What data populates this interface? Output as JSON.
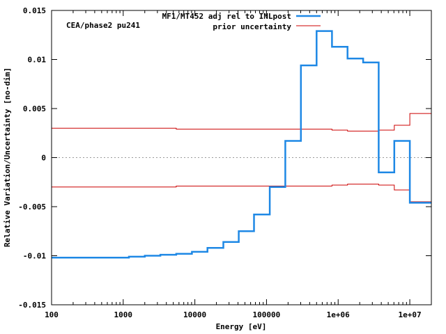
{
  "chart_data": {
    "type": "line",
    "title": "",
    "annotation": "CEA/phase2 pu241",
    "xlabel": "Energy [eV]",
    "ylabel": "Relative Variation/Uncertainty [no-dim]",
    "xscale": "log",
    "xlim": [
      100,
      20000000
    ],
    "ylim": [
      -0.015,
      0.015
    ],
    "grid": false,
    "legend_position": "top-right",
    "x_ticks": [
      {
        "value": 100,
        "label": "100"
      },
      {
        "value": 1000,
        "label": "1000"
      },
      {
        "value": 10000,
        "label": "10000"
      },
      {
        "value": 100000,
        "label": "100000"
      },
      {
        "value": 1000000,
        "label": "1e+06"
      },
      {
        "value": 10000000,
        "label": "1e+07"
      }
    ],
    "y_ticks": [
      {
        "value": -0.015,
        "label": "-0.015"
      },
      {
        "value": -0.01,
        "label": "-0.01"
      },
      {
        "value": -0.005,
        "label": "-0.005"
      },
      {
        "value": 0,
        "label": "0"
      },
      {
        "value": 0.005,
        "label": "0.005"
      },
      {
        "value": 0.01,
        "label": "0.01"
      },
      {
        "value": 0.015,
        "label": "0.015"
      }
    ],
    "zero_line": true,
    "series": [
      {
        "name": "MF1/MT452 adj rel to INLpost",
        "color": "#1e88e5",
        "style": "step",
        "edges": [
          100,
          1200,
          2000,
          3300,
          5500,
          9100,
          15000,
          25000,
          41000,
          67000,
          111000,
          183000,
          302000,
          500000,
          821000,
          1353000,
          2231000,
          3680000,
          6070000,
          10000000,
          20000000
        ],
        "values": [
          -0.0102,
          -0.0101,
          -0.01,
          -0.0099,
          -0.0098,
          -0.0096,
          -0.0092,
          -0.0086,
          -0.0075,
          -0.0058,
          -0.003,
          0.0017,
          0.0094,
          0.0129,
          0.0113,
          0.0101,
          0.0097,
          -0.0015,
          0.0017,
          -0.0046
        ]
      },
      {
        "name": "prior uncertainty",
        "color": "#cc0000",
        "style": "step-symmetric",
        "edges": [
          100,
          5500,
          821000,
          1353000,
          3680000,
          6070000,
          10000000,
          20000000
        ],
        "values": [
          0.003,
          0.0029,
          0.0028,
          0.0027,
          0.0028,
          0.0033,
          0.0045
        ]
      }
    ]
  }
}
